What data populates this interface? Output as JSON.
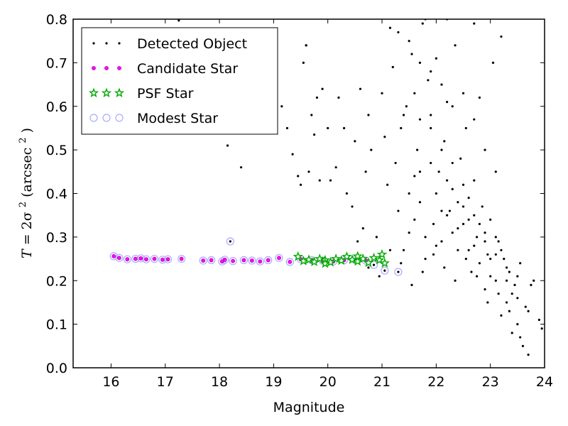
{
  "chart_data": {
    "type": "scatter",
    "xlabel": "Magnitude",
    "ylabel": {
      "prefix": "T",
      "equals": " = 2σ",
      "exp": "2",
      "suffix": " (arcsec",
      "suffix_exp": "2",
      "close": ")"
    },
    "xlim": [
      15.3,
      24
    ],
    "ylim": [
      0,
      0.8
    ],
    "xticks": [
      16,
      17,
      18,
      19,
      20,
      21,
      22,
      23,
      24
    ],
    "yticks": [
      0.0,
      0.1,
      0.2,
      0.3,
      0.4,
      0.5,
      0.6,
      0.7,
      0.8
    ],
    "ytick_labels": [
      "0.0",
      "0.1",
      "0.2",
      "0.3",
      "0.4",
      "0.5",
      "0.6",
      "0.7",
      "0.8"
    ],
    "legend_position": "top-left",
    "series": [
      {
        "name": "Detected Object",
        "marker": "dot",
        "color": "#000000",
        "points": [
          [
            16.05,
            0.256
          ],
          [
            16.15,
            0.252
          ],
          [
            16.3,
            0.249
          ],
          [
            16.45,
            0.25
          ],
          [
            16.55,
            0.251
          ],
          [
            16.65,
            0.249
          ],
          [
            16.8,
            0.25
          ],
          [
            16.95,
            0.248
          ],
          [
            17.05,
            0.249
          ],
          [
            17.3,
            0.25
          ],
          [
            17.25,
            0.797
          ],
          [
            18.15,
            0.51
          ],
          [
            18.4,
            0.46
          ],
          [
            18.2,
            0.29
          ],
          [
            17.7,
            0.246
          ],
          [
            17.85,
            0.247
          ],
          [
            18.05,
            0.244
          ],
          [
            18.1,
            0.248
          ],
          [
            18.25,
            0.245
          ],
          [
            18.45,
            0.247
          ],
          [
            18.6,
            0.246
          ],
          [
            18.75,
            0.244
          ],
          [
            18.9,
            0.247
          ],
          [
            19.1,
            0.252
          ],
          [
            19.3,
            0.243
          ],
          [
            19.5,
            0.249
          ],
          [
            19.7,
            0.247
          ],
          [
            19.9,
            0.246
          ],
          [
            20.1,
            0.244
          ],
          [
            20.3,
            0.247
          ],
          [
            20.5,
            0.248
          ],
          [
            20.7,
            0.246
          ],
          [
            20.85,
            0.236
          ],
          [
            21.05,
            0.223
          ],
          [
            21.3,
            0.22
          ],
          [
            19.55,
            0.7
          ],
          [
            19.6,
            0.74
          ],
          [
            19.7,
            0.58
          ],
          [
            19.75,
            0.535
          ],
          [
            19.8,
            0.62
          ],
          [
            19.9,
            0.64
          ],
          [
            19.95,
            0.81
          ],
          [
            20.0,
            0.55
          ],
          [
            20.05,
            0.43
          ],
          [
            20.15,
            0.46
          ],
          [
            19.35,
            0.49
          ],
          [
            19.45,
            0.44
          ],
          [
            19.5,
            0.42
          ],
          [
            19.25,
            0.55
          ],
          [
            19.15,
            0.6
          ],
          [
            19.85,
            0.43
          ],
          [
            19.65,
            0.45
          ],
          [
            19.6,
            0.74
          ],
          [
            20.2,
            0.62
          ],
          [
            20.3,
            0.55
          ],
          [
            20.35,
            0.4
          ],
          [
            20.45,
            0.37
          ],
          [
            20.5,
            0.52
          ],
          [
            20.6,
            0.64
          ],
          [
            20.65,
            0.32
          ],
          [
            20.7,
            0.45
          ],
          [
            20.75,
            0.58
          ],
          [
            20.8,
            0.5
          ],
          [
            20.9,
            0.3
          ],
          [
            21.0,
            0.63
          ],
          [
            21.05,
            0.53
          ],
          [
            21.1,
            0.42
          ],
          [
            21.15,
            0.78
          ],
          [
            21.2,
            0.69
          ],
          [
            21.25,
            0.47
          ],
          [
            21.3,
            0.36
          ],
          [
            21.35,
            0.55
          ],
          [
            21.4,
            0.27
          ],
          [
            21.45,
            0.6
          ],
          [
            21.5,
            0.31
          ],
          [
            21.55,
            0.72
          ],
          [
            21.6,
            0.44
          ],
          [
            21.65,
            0.5
          ],
          [
            21.7,
            0.38
          ],
          [
            21.75,
            0.79
          ],
          [
            21.8,
            0.25
          ],
          [
            21.85,
            0.66
          ],
          [
            21.9,
            0.58
          ],
          [
            21.95,
            0.33
          ],
          [
            22.0,
            0.71
          ],
          [
            22.05,
            0.45
          ],
          [
            22.1,
            0.29
          ],
          [
            22.15,
            0.52
          ],
          [
            22.2,
            0.61
          ],
          [
            22.25,
            0.36
          ],
          [
            22.3,
            0.41
          ],
          [
            22.35,
            0.74
          ],
          [
            22.4,
            0.27
          ],
          [
            22.45,
            0.48
          ],
          [
            22.5,
            0.33
          ],
          [
            22.55,
            0.55
          ],
          [
            22.6,
            0.39
          ],
          [
            22.65,
            0.22
          ],
          [
            22.7,
            0.43
          ],
          [
            22.75,
            0.3
          ],
          [
            22.8,
            0.62
          ],
          [
            22.85,
            0.37
          ],
          [
            22.9,
            0.18
          ],
          [
            22.95,
            0.26
          ],
          [
            23.0,
            0.34
          ],
          [
            23.05,
            0.7
          ],
          [
            23.1,
            0.2
          ],
          [
            23.15,
            0.29
          ],
          [
            23.2,
            0.12
          ],
          [
            23.25,
            0.25
          ],
          [
            23.3,
            0.15
          ],
          [
            23.35,
            0.22
          ],
          [
            23.4,
            0.08
          ],
          [
            23.45,
            0.19
          ],
          [
            23.5,
            0.1
          ],
          [
            23.55,
            0.24
          ],
          [
            23.6,
            0.05
          ],
          [
            23.65,
            0.14
          ],
          [
            23.7,
            0.03
          ],
          [
            23.75,
            0.19
          ],
          [
            23.8,
            0.2
          ],
          [
            23.9,
            0.11
          ],
          [
            23.95,
            0.09
          ],
          [
            21.4,
            0.58
          ],
          [
            21.6,
            0.63
          ],
          [
            21.7,
            0.57
          ],
          [
            21.9,
            0.47
          ],
          [
            22.0,
            0.4
          ],
          [
            22.1,
            0.36
          ],
          [
            22.2,
            0.43
          ],
          [
            22.3,
            0.31
          ],
          [
            22.4,
            0.38
          ],
          [
            22.5,
            0.42
          ],
          [
            22.6,
            0.34
          ],
          [
            22.7,
            0.28
          ],
          [
            22.8,
            0.33
          ],
          [
            22.9,
            0.29
          ],
          [
            23.0,
            0.25
          ],
          [
            23.1,
            0.3
          ],
          [
            23.2,
            0.27
          ],
          [
            23.3,
            0.2
          ],
          [
            23.4,
            0.17
          ],
          [
            23.5,
            0.21
          ],
          [
            21.6,
            0.34
          ],
          [
            21.8,
            0.3
          ],
          [
            22.0,
            0.28
          ],
          [
            22.2,
            0.35
          ],
          [
            22.4,
            0.32
          ],
          [
            22.6,
            0.27
          ],
          [
            22.8,
            0.24
          ],
          [
            23.0,
            0.21
          ],
          [
            21.5,
            0.4
          ],
          [
            21.7,
            0.45
          ],
          [
            21.9,
            0.55
          ],
          [
            22.1,
            0.5
          ],
          [
            22.3,
            0.47
          ],
          [
            22.5,
            0.37
          ],
          [
            22.7,
            0.35
          ],
          [
            22.9,
            0.31
          ],
          [
            23.1,
            0.26
          ],
          [
            23.3,
            0.23
          ],
          [
            23.5,
            0.16
          ],
          [
            23.7,
            0.13
          ],
          [
            21.3,
            0.77
          ],
          [
            21.5,
            0.75
          ],
          [
            21.7,
            0.7
          ],
          [
            21.9,
            0.68
          ],
          [
            22.1,
            0.65
          ],
          [
            22.3,
            0.6
          ],
          [
            22.5,
            0.63
          ],
          [
            22.7,
            0.57
          ],
          [
            22.9,
            0.5
          ],
          [
            23.1,
            0.45
          ],
          [
            20.55,
            0.29
          ],
          [
            20.75,
            0.23
          ],
          [
            20.95,
            0.21
          ],
          [
            21.15,
            0.27
          ],
          [
            21.35,
            0.24
          ],
          [
            21.55,
            0.19
          ],
          [
            21.75,
            0.22
          ],
          [
            21.95,
            0.26
          ],
          [
            22.15,
            0.23
          ],
          [
            22.35,
            0.2
          ],
          [
            22.55,
            0.25
          ],
          [
            22.75,
            0.21
          ],
          [
            22.95,
            0.15
          ],
          [
            23.15,
            0.17
          ],
          [
            23.35,
            0.13
          ],
          [
            23.55,
            0.07
          ],
          [
            22.7,
            0.79
          ],
          [
            22.2,
            0.8
          ],
          [
            21.8,
            0.8
          ],
          [
            23.2,
            0.76
          ]
        ]
      },
      {
        "name": "Candidate Star",
        "marker": "circle-small",
        "color": "#ff00ff",
        "points": [
          [
            16.05,
            0.256
          ],
          [
            16.15,
            0.252
          ],
          [
            16.3,
            0.249
          ],
          [
            16.45,
            0.25
          ],
          [
            16.55,
            0.251
          ],
          [
            16.65,
            0.249
          ],
          [
            16.8,
            0.25
          ],
          [
            16.95,
            0.248
          ],
          [
            17.05,
            0.249
          ],
          [
            17.3,
            0.25
          ],
          [
            17.7,
            0.246
          ],
          [
            17.85,
            0.247
          ],
          [
            18.05,
            0.244
          ],
          [
            18.1,
            0.248
          ],
          [
            18.25,
            0.245
          ],
          [
            18.45,
            0.247
          ],
          [
            18.6,
            0.246
          ],
          [
            18.75,
            0.244
          ],
          [
            18.9,
            0.247
          ],
          [
            19.1,
            0.252
          ],
          [
            19.3,
            0.243
          ],
          [
            19.5,
            0.249
          ],
          [
            19.7,
            0.247
          ],
          [
            19.9,
            0.246
          ],
          [
            20.1,
            0.244
          ],
          [
            20.3,
            0.247
          ],
          [
            20.5,
            0.248
          ],
          [
            20.7,
            0.246
          ]
        ]
      },
      {
        "name": "PSF Star",
        "marker": "star",
        "color": "#00aa00",
        "points": [
          [
            19.45,
            0.255
          ],
          [
            19.55,
            0.245
          ],
          [
            19.65,
            0.248
          ],
          [
            19.75,
            0.243
          ],
          [
            19.85,
            0.25
          ],
          [
            19.95,
            0.247
          ],
          [
            20.05,
            0.242
          ],
          [
            20.15,
            0.25
          ],
          [
            20.25,
            0.246
          ],
          [
            20.35,
            0.255
          ],
          [
            20.45,
            0.248
          ],
          [
            20.55,
            0.244
          ],
          [
            20.65,
            0.25
          ],
          [
            20.75,
            0.241
          ],
          [
            20.85,
            0.252
          ],
          [
            20.95,
            0.247
          ],
          [
            21.0,
            0.26
          ],
          [
            21.05,
            0.24
          ],
          [
            20.55,
            0.256
          ],
          [
            19.95,
            0.239
          ]
        ]
      },
      {
        "name": "Modest Star",
        "marker": "circle-large",
        "color": "#aaaaff",
        "points": [
          [
            16.05,
            0.256
          ],
          [
            16.15,
            0.252
          ],
          [
            16.3,
            0.249
          ],
          [
            16.45,
            0.25
          ],
          [
            16.55,
            0.251
          ],
          [
            16.65,
            0.249
          ],
          [
            16.8,
            0.25
          ],
          [
            16.95,
            0.248
          ],
          [
            17.05,
            0.249
          ],
          [
            17.3,
            0.25
          ],
          [
            17.7,
            0.246
          ],
          [
            17.85,
            0.247
          ],
          [
            18.05,
            0.244
          ],
          [
            18.1,
            0.248
          ],
          [
            18.2,
            0.29
          ],
          [
            18.25,
            0.245
          ],
          [
            18.45,
            0.247
          ],
          [
            18.6,
            0.246
          ],
          [
            18.75,
            0.244
          ],
          [
            18.9,
            0.247
          ],
          [
            19.1,
            0.252
          ],
          [
            19.3,
            0.243
          ],
          [
            19.5,
            0.249
          ],
          [
            19.7,
            0.247
          ],
          [
            19.9,
            0.246
          ],
          [
            20.1,
            0.244
          ],
          [
            20.3,
            0.247
          ],
          [
            20.5,
            0.248
          ],
          [
            20.7,
            0.246
          ],
          [
            20.85,
            0.236
          ],
          [
            21.05,
            0.223
          ],
          [
            21.3,
            0.22
          ]
        ]
      }
    ]
  }
}
